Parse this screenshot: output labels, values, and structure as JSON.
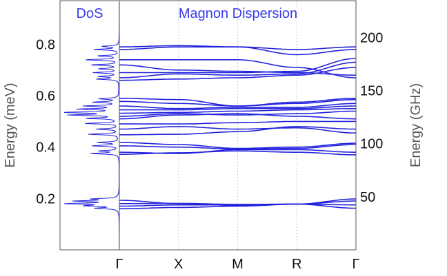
{
  "chart_data": {
    "type": "line",
    "panels": [
      {
        "name": "dos",
        "title": "DoS"
      },
      {
        "name": "dispersion",
        "title": "Magnon Dispersion"
      }
    ],
    "x_ticks": [
      "Γ",
      "X",
      "M",
      "R",
      "Γ"
    ],
    "y_left": {
      "label": "Energy (meV)",
      "ticks": [
        0.2,
        0.4,
        0.6,
        0.8
      ],
      "range": [
        0,
        0.97
      ]
    },
    "y_right": {
      "label": "Energy (GHz)",
      "ticks": [
        50,
        100,
        150,
        200
      ],
      "range": [
        0,
        234.5
      ]
    },
    "grid": "vertical dotted at X, M, R",
    "line_color": "#2222dd",
    "title_color": "#3a3aee",
    "series": [
      {
        "values": [
          0.18,
          0.181,
          0.177,
          0.178,
          0.198
        ]
      },
      {
        "values": [
          0.17,
          0.175,
          0.175,
          0.178,
          0.19
        ]
      },
      {
        "values": [
          0.16,
          0.165,
          0.17,
          0.178,
          0.175
        ]
      },
      {
        "values": [
          0.193,
          0.18,
          0.173,
          0.178,
          0.162
        ]
      },
      {
        "values": [
          0.372,
          0.378,
          0.385,
          0.38,
          0.37
        ]
      },
      {
        "values": [
          0.38,
          0.375,
          0.39,
          0.39,
          0.38
        ]
      },
      {
        "values": [
          0.405,
          0.4,
          0.392,
          0.395,
          0.41
        ]
      },
      {
        "values": [
          0.418,
          0.41,
          0.395,
          0.4,
          0.415
        ]
      },
      {
        "values": [
          0.448,
          0.45,
          0.46,
          0.48,
          0.47
        ]
      },
      {
        "values": [
          0.47,
          0.48,
          0.47,
          0.475,
          0.455
        ]
      },
      {
        "values": [
          0.49,
          0.49,
          0.495,
          0.5,
          0.5
        ]
      },
      {
        "values": [
          0.51,
          0.525,
          0.53,
          0.52,
          0.51
        ]
      },
      {
        "values": [
          0.52,
          0.53,
          0.525,
          0.53,
          0.54
        ]
      },
      {
        "values": [
          0.532,
          0.535,
          0.54,
          0.545,
          0.55
        ]
      },
      {
        "values": [
          0.545,
          0.545,
          0.55,
          0.55,
          0.56
        ]
      },
      {
        "values": [
          0.56,
          0.55,
          0.555,
          0.555,
          0.57
        ]
      },
      {
        "values": [
          0.578,
          0.57,
          0.56,
          0.57,
          0.585
        ]
      },
      {
        "values": [
          0.59,
          0.585,
          0.56,
          0.575,
          0.59
        ]
      },
      {
        "values": [
          0.66,
          0.665,
          0.67,
          0.68,
          0.71
        ]
      },
      {
        "values": [
          0.67,
          0.685,
          0.68,
          0.685,
          0.73
        ]
      },
      {
        "values": [
          0.69,
          0.69,
          0.69,
          0.695,
          0.745
        ]
      },
      {
        "values": [
          0.72,
          0.7,
          0.695,
          0.69,
          0.68
        ]
      },
      {
        "values": [
          0.74,
          0.74,
          0.74,
          0.71,
          0.67
        ]
      },
      {
        "values": [
          0.78,
          0.79,
          0.79,
          0.76,
          0.78
        ]
      },
      {
        "values": [
          0.79,
          0.795,
          0.79,
          0.78,
          0.79
        ]
      }
    ],
    "dos_peaks": [
      {
        "e": 0.18,
        "w": 0.92
      },
      {
        "e": 0.19,
        "w": 0.75
      },
      {
        "e": 0.172,
        "w": 0.55
      },
      {
        "e": 0.198,
        "w": 0.45
      },
      {
        "e": 0.162,
        "w": 0.4
      },
      {
        "e": 0.375,
        "w": 0.5
      },
      {
        "e": 0.385,
        "w": 0.35
      },
      {
        "e": 0.405,
        "w": 0.48
      },
      {
        "e": 0.418,
        "w": 0.38
      },
      {
        "e": 0.45,
        "w": 0.55
      },
      {
        "e": 0.47,
        "w": 0.4
      },
      {
        "e": 0.492,
        "w": 0.6
      },
      {
        "e": 0.512,
        "w": 0.55
      },
      {
        "e": 0.525,
        "w": 0.85
      },
      {
        "e": 0.535,
        "w": 1.0
      },
      {
        "e": 0.548,
        "w": 0.7
      },
      {
        "e": 0.56,
        "w": 0.6
      },
      {
        "e": 0.575,
        "w": 0.45
      },
      {
        "e": 0.588,
        "w": 0.35
      },
      {
        "e": 0.665,
        "w": 0.4
      },
      {
        "e": 0.675,
        "w": 0.35
      },
      {
        "e": 0.69,
        "w": 0.45
      },
      {
        "e": 0.705,
        "w": 0.35
      },
      {
        "e": 0.72,
        "w": 0.5
      },
      {
        "e": 0.74,
        "w": 0.6
      },
      {
        "e": 0.755,
        "w": 0.38
      },
      {
        "e": 0.78,
        "w": 0.45
      },
      {
        "e": 0.792,
        "w": 0.3
      }
    ]
  }
}
